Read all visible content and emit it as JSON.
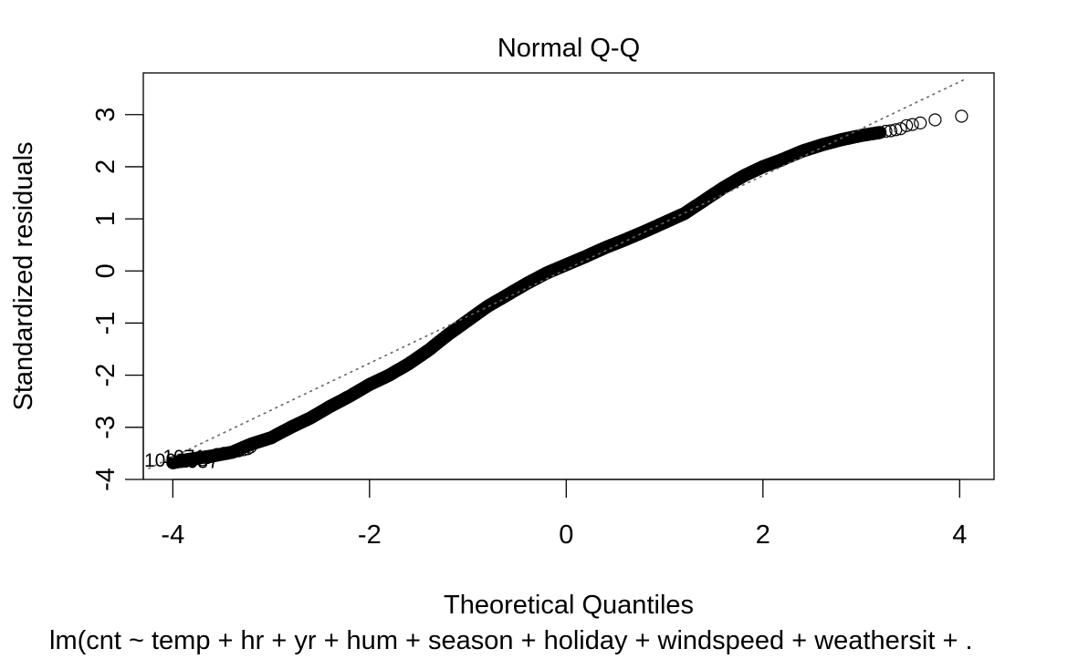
{
  "chart_data": {
    "type": "scatter",
    "title": "Normal Q-Q",
    "xlabel": "Theoretical Quantiles",
    "ylabel": "Standardized residuals",
    "caption": "lm(cnt ~ temp + hr + yr + hum + season + holiday + windspeed + weathersit + .",
    "xlim": [
      -4.3,
      4.35
    ],
    "ylim": [
      -4.0,
      3.8
    ],
    "x_ticks": [
      -4,
      -2,
      0,
      2,
      4
    ],
    "x_tick_labels": [
      "-4",
      "-2",
      "0",
      "2",
      "4"
    ],
    "y_ticks": [
      -4,
      -3,
      -2,
      -1,
      0,
      1,
      2,
      3
    ],
    "y_tick_labels": [
      "-4",
      "-3",
      "-2",
      "-1",
      "0",
      "1",
      "2",
      "3"
    ],
    "grid": false,
    "reference_line": {
      "slope": 0.9,
      "intercept": 0.03,
      "style": "dotted",
      "color": "#666666"
    },
    "series": [
      {
        "marker": "open-circle",
        "color": "#000000",
        "curve": [
          [
            -4.0,
            -3.68
          ],
          [
            -3.85,
            -3.62
          ],
          [
            -3.6,
            -3.55
          ],
          [
            -3.4,
            -3.48
          ],
          [
            -3.2,
            -3.32
          ],
          [
            -3.0,
            -3.2
          ],
          [
            -2.8,
            -3.0
          ],
          [
            -2.6,
            -2.82
          ],
          [
            -2.4,
            -2.6
          ],
          [
            -2.2,
            -2.4
          ],
          [
            -2.0,
            -2.18
          ],
          [
            -1.8,
            -2.0
          ],
          [
            -1.6,
            -1.78
          ],
          [
            -1.4,
            -1.52
          ],
          [
            -1.2,
            -1.22
          ],
          [
            -1.0,
            -0.95
          ],
          [
            -0.8,
            -0.68
          ],
          [
            -0.6,
            -0.46
          ],
          [
            -0.4,
            -0.24
          ],
          [
            -0.2,
            -0.04
          ],
          [
            0.0,
            0.12
          ],
          [
            0.2,
            0.28
          ],
          [
            0.4,
            0.45
          ],
          [
            0.6,
            0.6
          ],
          [
            0.8,
            0.76
          ],
          [
            1.0,
            0.93
          ],
          [
            1.2,
            1.1
          ],
          [
            1.4,
            1.35
          ],
          [
            1.6,
            1.6
          ],
          [
            1.8,
            1.82
          ],
          [
            2.0,
            2.0
          ],
          [
            2.2,
            2.14
          ],
          [
            2.4,
            2.3
          ],
          [
            2.6,
            2.42
          ],
          [
            2.8,
            2.52
          ],
          [
            3.0,
            2.6
          ],
          [
            3.2,
            2.66
          ]
        ],
        "tail_points": [
          [
            -3.95,
            -3.66
          ],
          [
            -3.87,
            -3.65
          ],
          [
            -3.8,
            -3.64
          ],
          [
            -3.7,
            -3.62
          ],
          [
            -3.65,
            -3.58
          ],
          [
            -3.55,
            -3.52
          ],
          [
            -3.48,
            -3.5
          ],
          [
            -3.43,
            -3.49
          ],
          [
            -3.38,
            -3.47
          ],
          [
            -3.33,
            -3.45
          ],
          [
            -3.28,
            -3.43
          ],
          [
            -3.24,
            -3.41
          ],
          [
            -3.21,
            -3.38
          ],
          [
            3.25,
            2.68
          ],
          [
            3.3,
            2.69
          ],
          [
            3.35,
            2.71
          ],
          [
            3.4,
            2.73
          ],
          [
            3.46,
            2.79
          ],
          [
            3.52,
            2.81
          ],
          [
            3.6,
            2.84
          ],
          [
            3.75,
            2.9
          ],
          [
            4.02,
            2.97
          ]
        ]
      }
    ],
    "point_labels": [
      {
        "x": -4.02,
        "y": -3.65,
        "text": "10926"
      },
      {
        "x": -3.83,
        "y": -3.58,
        "text": "10710"
      },
      {
        "x": -3.75,
        "y": -3.68,
        "text": "5637"
      }
    ]
  }
}
